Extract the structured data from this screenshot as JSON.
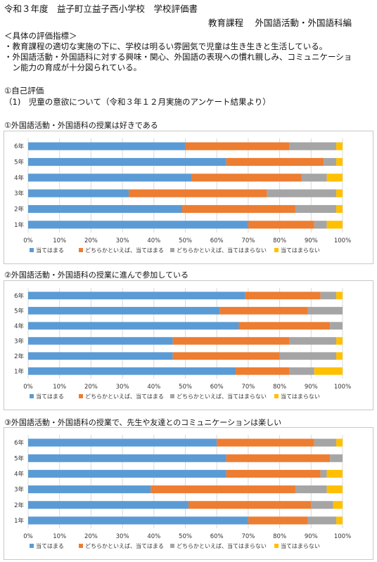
{
  "header": {
    "title": "令和３年度　益子町立益子西小学校　学校評価書",
    "subtitle": "教育課程　 外国語活動・外国語科編"
  },
  "indicators": {
    "heading": "＜具体の評価指標＞",
    "items": [
      "・教育課程の適切な実施の下に、学校は明るい雰囲気で児童は生き生きと生活している。",
      "・外国語活動・外国語科に対する興味・関心、外国語の表現への慣れ親しみ、コミュニケーショ",
      "　ン能力の育成が十分図られている。"
    ]
  },
  "self_eval": {
    "heading": "①自己評価",
    "sub": "（1)　児童の意欲について（令和３年１２月実施のアンケート結果より）"
  },
  "colors": {
    "atehamaru": "#5b9bd5",
    "dochiraka_ate": "#ed7d31",
    "dochiraka_atehamaranai": "#a5a5a5",
    "atehamaranai": "#ffc000"
  },
  "chart_data": [
    {
      "type": "bar",
      "orientation": "horizontal",
      "stacked": "percent",
      "title": "①外国語活動・外国語科の授業は好きである",
      "categories": [
        "6年",
        "5年",
        "4年",
        "3年",
        "2年",
        "1年"
      ],
      "series": [
        {
          "name": "当てはまる",
          "values": [
            50,
            63,
            52,
            32,
            49,
            70
          ]
        },
        {
          "name": "どちらかといえば、当てはまる",
          "values": [
            33,
            31,
            35,
            44,
            36,
            21
          ]
        },
        {
          "name": "どちらかといえば、当てはまらない",
          "values": [
            15,
            4,
            8,
            22,
            13,
            4
          ]
        },
        {
          "name": "当てはまらない",
          "values": [
            2,
            2,
            5,
            2,
            2,
            5
          ]
        }
      ],
      "x_ticks": [
        "0%",
        "10%",
        "20%",
        "30%",
        "40%",
        "50%",
        "60%",
        "70%",
        "80%",
        "90%",
        "100%"
      ],
      "xlim": [
        0,
        100
      ],
      "legend": "bottom"
    },
    {
      "type": "bar",
      "orientation": "horizontal",
      "stacked": "percent",
      "title": "②外国語活動・外国語科の授業に進んで参加している",
      "categories": [
        "6年",
        "5年",
        "4年",
        "3年",
        "2年",
        "1年"
      ],
      "series": [
        {
          "name": "当てはまる",
          "values": [
            69,
            61,
            67,
            46,
            46,
            66
          ]
        },
        {
          "name": "どちらかといえば、当てはまる",
          "values": [
            24,
            28,
            29,
            37,
            34,
            17
          ]
        },
        {
          "name": "どちらかといえば、当てはまらない",
          "values": [
            5,
            11,
            4,
            15,
            18,
            8
          ]
        },
        {
          "name": "当てはまらない",
          "values": [
            2,
            0,
            0,
            2,
            2,
            9
          ]
        }
      ],
      "x_ticks": [
        "0%",
        "10%",
        "20%",
        "30%",
        "40%",
        "50%",
        "60%",
        "70%",
        "80%",
        "90%",
        "100%"
      ],
      "xlim": [
        0,
        100
      ],
      "legend": "bottom"
    },
    {
      "type": "bar",
      "orientation": "horizontal",
      "stacked": "percent",
      "title": "③外国語活動・外国語科の授業で、先生や友達とのコミュニケーションは楽しい",
      "categories": [
        "6年",
        "5年",
        "4年",
        "3年",
        "2年",
        "1年"
      ],
      "series": [
        {
          "name": "当てはまる",
          "values": [
            60,
            63,
            63,
            39,
            51,
            70
          ]
        },
        {
          "name": "どちらかといえば、当てはまる",
          "values": [
            31,
            33,
            30,
            46,
            39,
            19
          ]
        },
        {
          "name": "どちらかといえば、当てはまらない",
          "values": [
            7,
            4,
            2,
            10,
            7,
            9
          ]
        },
        {
          "name": "当てはまらない",
          "values": [
            2,
            0,
            5,
            5,
            3,
            2
          ]
        }
      ],
      "x_ticks": [
        "0%",
        "10%",
        "20%",
        "30%",
        "40%",
        "50%",
        "60%",
        "70%",
        "80%",
        "90%",
        "100%"
      ],
      "xlim": [
        0,
        100
      ],
      "legend": "bottom"
    }
  ]
}
